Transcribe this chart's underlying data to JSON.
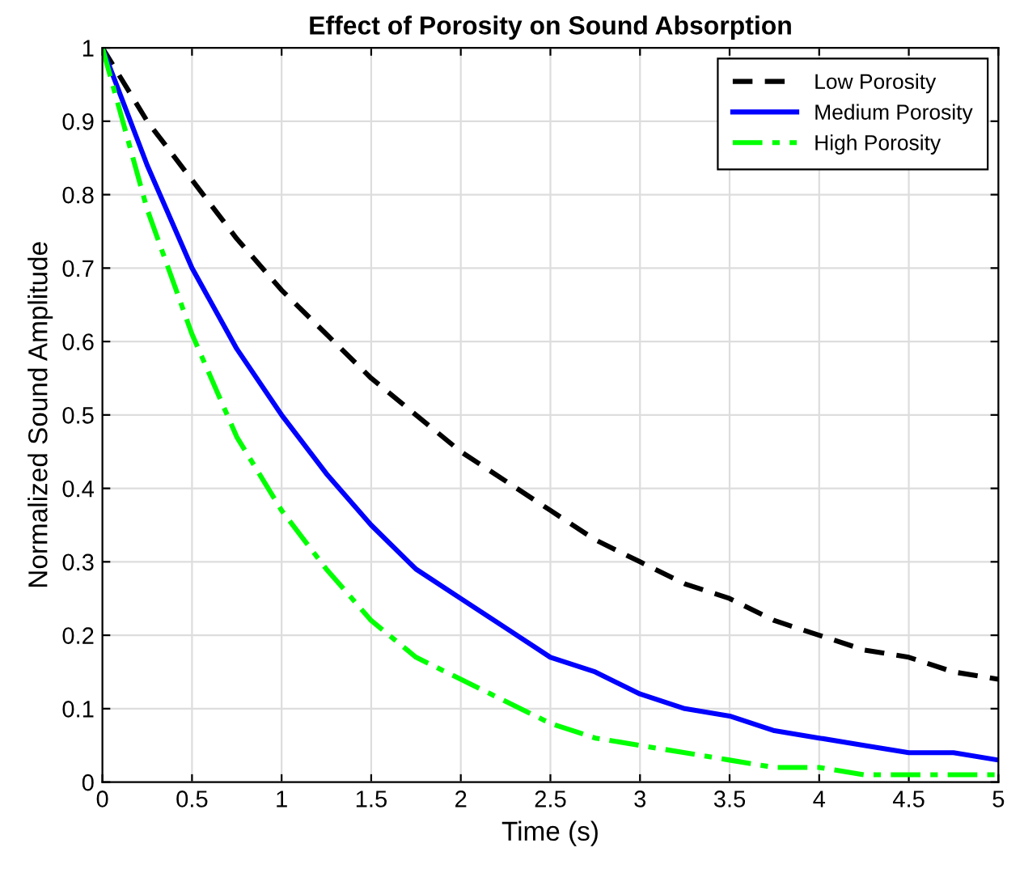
{
  "chart_data": {
    "type": "line",
    "title": "Effect of Porosity on Sound Absorption",
    "xlabel": "Time (s)",
    "ylabel": "Normalized Sound Amplitude",
    "x": [
      0,
      0.25,
      0.5,
      0.75,
      1,
      1.25,
      1.5,
      1.75,
      2,
      2.25,
      2.5,
      2.75,
      3,
      3.25,
      3.5,
      3.75,
      4,
      4.25,
      4.5,
      4.75,
      5
    ],
    "series": [
      {
        "name": "Low Porosity",
        "color": "#000000",
        "line_style": "dashed",
        "values": [
          1.0,
          0.9,
          0.82,
          0.74,
          0.67,
          0.61,
          0.55,
          0.5,
          0.45,
          0.41,
          0.37,
          0.33,
          0.3,
          0.27,
          0.25,
          0.22,
          0.2,
          0.18,
          0.17,
          0.15,
          0.14
        ]
      },
      {
        "name": "Medium Porosity",
        "color": "#0000ff",
        "line_style": "solid",
        "values": [
          1.0,
          0.84,
          0.7,
          0.59,
          0.5,
          0.42,
          0.35,
          0.29,
          0.25,
          0.21,
          0.17,
          0.15,
          0.12,
          0.1,
          0.09,
          0.07,
          0.06,
          0.05,
          0.04,
          0.04,
          0.03
        ]
      },
      {
        "name": "High Porosity",
        "color": "#00ff00",
        "line_style": "dashdot",
        "values": [
          1.0,
          0.78,
          0.61,
          0.47,
          0.37,
          0.29,
          0.22,
          0.17,
          0.14,
          0.11,
          0.08,
          0.06,
          0.05,
          0.04,
          0.03,
          0.02,
          0.02,
          0.01,
          0.01,
          0.01,
          0.01
        ]
      }
    ],
    "xlim": [
      0,
      5
    ],
    "xticks": [
      0,
      0.5,
      1,
      1.5,
      2,
      2.5,
      3,
      3.5,
      4,
      4.5,
      5
    ],
    "ylim": [
      0,
      1
    ],
    "yticks": [
      0,
      0.1,
      0.2,
      0.3,
      0.4,
      0.5,
      0.6,
      0.7,
      0.8,
      0.9,
      1
    ],
    "grid": true,
    "legend": "top right",
    "marker": "none"
  }
}
